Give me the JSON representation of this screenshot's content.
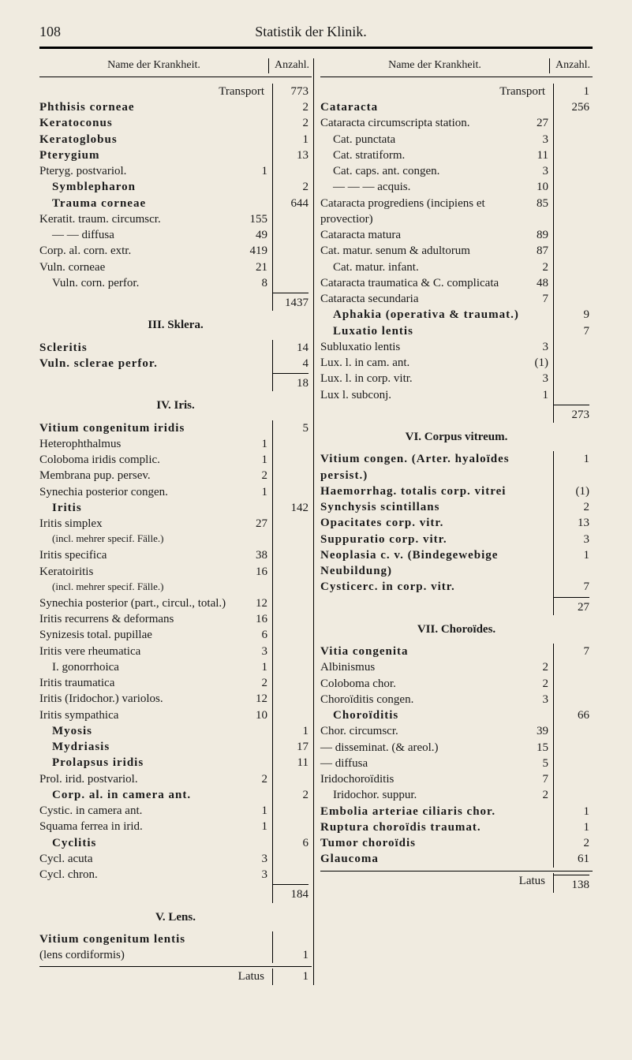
{
  "page": {
    "number": "108",
    "header": "Statistik der Klinik."
  },
  "columnHeaders": {
    "name": "Name der Krankheit.",
    "count": "Anzahl."
  },
  "left": {
    "transport": {
      "label": "Transport",
      "count": "773"
    },
    "rows1": [
      {
        "label": "Phthisis corneae",
        "bold": true,
        "count": "2"
      },
      {
        "label": "Keratoconus",
        "bold": true,
        "count": "2"
      },
      {
        "label": "Keratoglobus",
        "bold": true,
        "count": "1"
      },
      {
        "label": "Pterygium",
        "bold": true,
        "count": "13"
      }
    ],
    "pteryg": [
      {
        "label": "Pteryg. postvariol.",
        "mid": "1"
      },
      {
        "label": "Symblepharon",
        "bold": true,
        "indent": 1,
        "count": "2"
      },
      {
        "label": "Trauma corneae",
        "bold": true,
        "indent": 1,
        "count": "644"
      }
    ],
    "keratit": [
      {
        "label": "Keratit. traum. circumscr.",
        "mid": "155"
      },
      {
        "label": "—      —    diffusa",
        "indent": 1,
        "mid": "49"
      },
      {
        "label": "Corp. al. corn. extr.",
        "mid": "419"
      },
      {
        "label": "Vuln. corneae",
        "mid": "21"
      },
      {
        "label": "Vuln. corn. perfor.",
        "indent": 1,
        "mid2": "8"
      }
    ],
    "sum1": "1437",
    "section3": "III. Sklera.",
    "scleritis": [
      {
        "label": "Scleritis",
        "bold": true,
        "count": "14"
      },
      {
        "label": "Vuln. sclerae perfor.",
        "bold": true,
        "count": "4"
      }
    ],
    "sum2": "18",
    "section4": "IV. Iris.",
    "iris": [
      {
        "label": "Vitium congenitum iridis",
        "bold": true,
        "count": "5"
      },
      {
        "label": "Heterophthalmus",
        "mid": "1"
      },
      {
        "label": "Coloboma iridis complic.",
        "mid": "1"
      },
      {
        "label": "Membrana pup. persev.",
        "mid": "2"
      },
      {
        "label": "Synechia posterior congen.",
        "mid": "1"
      },
      {
        "label": "Iritis",
        "bold": true,
        "indent": 1,
        "count": "142"
      },
      {
        "label": "Iritis simplex",
        "mid": "27"
      },
      {
        "label": "(incl. mehrer specif. Fälle.)",
        "small": true,
        "indent": 1
      },
      {
        "label": "Iritis specifica",
        "mid": "38"
      },
      {
        "label": "Keratoiritis",
        "mid": "16"
      },
      {
        "label": "(incl. mehrer specif. Fälle.)",
        "small": true,
        "indent": 1
      },
      {
        "label": "Synechia posterior (part., circul., total.)",
        "mid": "12"
      },
      {
        "label": "Iritis recurrens & deformans",
        "mid": "16"
      },
      {
        "label": "Synizesis total. pupillae",
        "mid": "6"
      },
      {
        "label": "Iritis vere rheumatica",
        "mid": "3"
      },
      {
        "label": "I. gonorrhoica",
        "indent": 1,
        "mid2": "1"
      },
      {
        "label": "Iritis traumatica",
        "mid": "2"
      },
      {
        "label": "Iritis (Iridochor.) variolos.",
        "mid": "12"
      },
      {
        "label": "Iritis sympathica",
        "mid": "10"
      },
      {
        "label": "Myosis",
        "bold": true,
        "indent": 1,
        "count": "1"
      },
      {
        "label": "Mydriasis",
        "bold": true,
        "indent": 1,
        "count": "17"
      },
      {
        "label": "Prolapsus iridis",
        "bold": true,
        "indent": 1,
        "count": "11"
      },
      {
        "label": "Prol. irid. postvariol.",
        "mid": "2"
      },
      {
        "label": "Corp. al. in camera ant.",
        "bold": true,
        "indent": 1,
        "count": "2"
      },
      {
        "label": "Cystic. in camera ant.",
        "mid": "1"
      },
      {
        "label": "Squama ferrea in irid.",
        "mid": "1"
      },
      {
        "label": "Cyclitis",
        "bold": true,
        "indent": 1,
        "count": "6"
      },
      {
        "label": "Cycl. acuta",
        "mid": "3"
      },
      {
        "label": "Cycl. chron.",
        "mid": "3"
      }
    ],
    "sum3": "184",
    "section5": "V. Lens.",
    "lens": [
      {
        "label": "Vitium congenitum lentis",
        "bold": true
      },
      {
        "label": "(lens cordiformis)",
        "count": "1"
      }
    ],
    "latus": {
      "label": "Latus",
      "count": "1"
    }
  },
  "right": {
    "transport": {
      "label": "Transport",
      "count": "1"
    },
    "rows1": [
      {
        "label": "Cataracta",
        "bold": true,
        "count": "256"
      },
      {
        "label": "Cataracta circumscripta station.",
        "mid": "27"
      },
      {
        "label": "Cat. punctata",
        "indent": 1,
        "mid2": "3"
      },
      {
        "label": "Cat. stratiform.",
        "indent": 1,
        "mid2": "11"
      },
      {
        "label": "Cat. caps. ant. congen.",
        "indent": 1,
        "mid2": "3"
      },
      {
        "label": "—   —   — acquis.",
        "indent": 1,
        "mid2": "10"
      },
      {
        "label": "Cataracta progrediens (incipiens et provectior)",
        "mid": "85"
      },
      {
        "label": "Cataracta matura",
        "mid": "89"
      },
      {
        "label": "Cat. matur. senum & adultorum",
        "mid2": "87"
      },
      {
        "label": "Cat. matur. infant.",
        "indent": 1,
        "mid2": "2"
      },
      {
        "label": "Cataracta traumatica & C. complicata",
        "mid": "48"
      },
      {
        "label": "Cataracta secundaria",
        "mid": "7"
      },
      {
        "label": "Aphakia (operativa & traumat.)",
        "bold": true,
        "indent": 1,
        "count": "9"
      },
      {
        "label": "Luxatio lentis",
        "bold": true,
        "indent": 1,
        "count": "7"
      },
      {
        "label": "Subluxatio lentis",
        "mid": "3"
      },
      {
        "label": "Lux. l. in cam. ant.",
        "mid": "(1)"
      },
      {
        "label": "Lux. l. in corp. vitr.",
        "mid": "3"
      },
      {
        "label": "Lux l. subconj.",
        "mid": "1"
      }
    ],
    "sum1": "273",
    "section6": "VI. Corpus vitreum.",
    "corpus": [
      {
        "label": "Vitium congen. (Arter. hyaloïdes persist.)",
        "bold": true,
        "count": "1"
      },
      {
        "label": "Haemorrhag. totalis corp. vitrei",
        "bold": true,
        "count": "(1)"
      },
      {
        "label": "Synchysis scintillans",
        "bold": true,
        "count": "2"
      },
      {
        "label": "Opacitates corp. vitr.",
        "bold": true,
        "count": "13"
      },
      {
        "label": "Suppuratio corp. vitr.",
        "bold": true,
        "count": "3"
      },
      {
        "label": "Neoplasia c. v. (Bindegewebige Neubildung)",
        "bold": true,
        "count": "1"
      },
      {
        "label": "Cysticerc. in corp. vitr.",
        "bold": true,
        "count": "7"
      }
    ],
    "sum2": "27",
    "section7": "VII. Choroïdes.",
    "choroides": [
      {
        "label": "Vitia congenita",
        "bold": true,
        "count": "7"
      },
      {
        "label": "Albinismus",
        "mid": "2"
      },
      {
        "label": "Coloboma chor.",
        "mid": "2"
      },
      {
        "label": "Choroïditis congen.",
        "mid": "3"
      },
      {
        "label": "Choroïditis",
        "bold": true,
        "indent": 1,
        "count": "66"
      },
      {
        "label": "Chor. circumscr.",
        "mid": "39"
      },
      {
        "label": "— disseminat. (& areol.)",
        "mid": "15"
      },
      {
        "label": "— diffusa",
        "mid": "5"
      },
      {
        "label": "Iridochoroïditis",
        "mid": "7"
      },
      {
        "label": "Iridochor. suppur.",
        "indent": 1,
        "mid2": "2"
      },
      {
        "label": "Embolia arteriae ciliaris chor.",
        "bold": true,
        "count": "1"
      },
      {
        "label": "Ruptura choroïdis traumat.",
        "bold": true,
        "count": "1"
      },
      {
        "label": "Tumor choroïdis",
        "bold": true,
        "count": "2"
      },
      {
        "label": "Glaucoma",
        "bold": true,
        "count": "61"
      }
    ],
    "latus": {
      "label": "Latus",
      "count": "138"
    }
  }
}
